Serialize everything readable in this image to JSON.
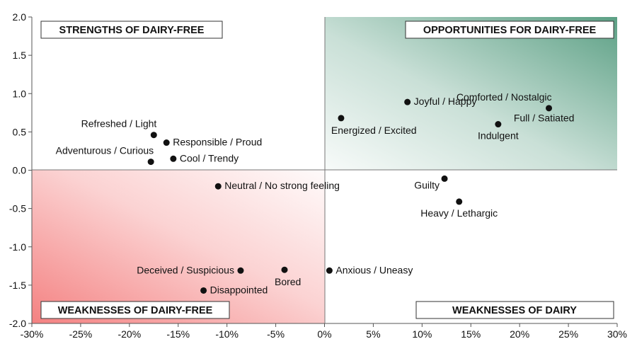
{
  "chart_data": {
    "type": "scatter",
    "xlim": [
      -30,
      30
    ],
    "ylim": [
      -2.0,
      2.0
    ],
    "x_ticks": [
      "-30%",
      "-25%",
      "-20%",
      "-15%",
      "-10%",
      "-5%",
      "0%",
      "5%",
      "10%",
      "15%",
      "20%",
      "25%",
      "30%"
    ],
    "y_ticks": [
      "2.0",
      "1.5",
      "1.0",
      "0.5",
      "0.0",
      "-0.5",
      "-1.0",
      "-1.5",
      "-2.0"
    ],
    "grid": false,
    "quadrants": {
      "top_left": "STRENGTHS OF DAIRY-FREE",
      "top_right": "OPPORTUNITIES FOR DAIRY-FREE",
      "bottom_left": "WEAKNESSES OF DAIRY-FREE",
      "bottom_right": "WEAKNESSES OF DAIRY"
    },
    "quadrant_colors": {
      "top_right": "#3f8f6f",
      "bottom_left": "#f26b6b"
    },
    "points": [
      {
        "label": "Refreshed / Light",
        "x": -17.5,
        "y": 0.46,
        "label_pos": "above-left"
      },
      {
        "label": "Responsible / Proud",
        "x": -16.2,
        "y": 0.36,
        "label_pos": "right"
      },
      {
        "label": "Adventurous / Curious",
        "x": -17.8,
        "y": 0.11,
        "label_pos": "above-left"
      },
      {
        "label": "Cool / Trendy",
        "x": -15.5,
        "y": 0.15,
        "label_pos": "right"
      },
      {
        "label": "Energized / Excited",
        "x": 1.7,
        "y": 0.68,
        "label_pos": "below-right"
      },
      {
        "label": "Joyful / Happy",
        "x": 8.5,
        "y": 0.89,
        "label_pos": "right"
      },
      {
        "label": "Comforted / Nostalgic",
        "x": 23.0,
        "y": 0.81,
        "label_pos": "above-left"
      },
      {
        "label": "Full / Satiated",
        "x": 17.8,
        "y": 0.6,
        "label_pos": "above-right"
      },
      {
        "label": "Indulgent",
        "x": 17.8,
        "y": 0.6,
        "label_pos": "below"
      },
      {
        "label": "Neutral / No strong feeling",
        "x": -10.9,
        "y": -0.21,
        "label_pos": "right"
      },
      {
        "label": "Guilty",
        "x": 12.3,
        "y": -0.11,
        "label_pos": "below-left"
      },
      {
        "label": "Heavy / Lethargic",
        "x": 13.8,
        "y": -0.41,
        "label_pos": "below"
      },
      {
        "label": "Deceived / Suspicious",
        "x": -8.6,
        "y": -1.31,
        "label_pos": "left"
      },
      {
        "label": "Bored",
        "x": -4.1,
        "y": -1.3,
        "label_pos": "below-right"
      },
      {
        "label": "Anxious / Uneasy",
        "x": 0.5,
        "y": -1.31,
        "label_pos": "right"
      },
      {
        "label": "Disappointed",
        "x": -12.4,
        "y": -1.57,
        "label_pos": "right"
      }
    ]
  }
}
